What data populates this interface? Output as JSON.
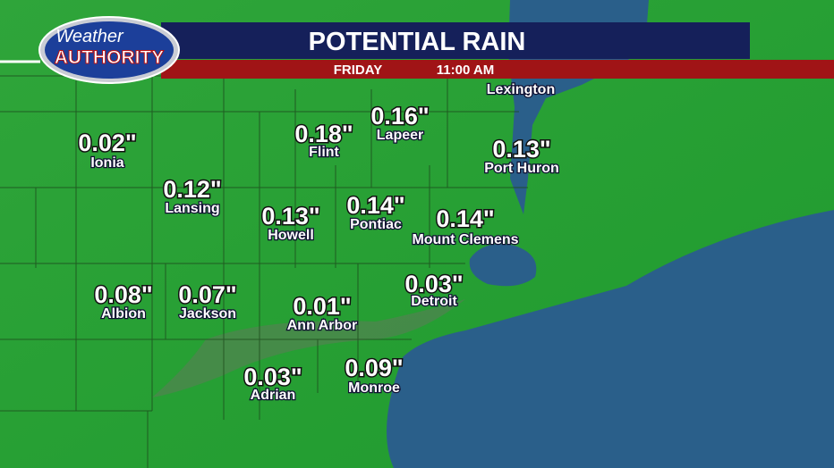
{
  "header": {
    "logo_top": "Weather",
    "logo_bottom": "AUTHORITY",
    "title": "POTENTIAL RAIN",
    "day": "FRIDAY",
    "time": "11:00 AM"
  },
  "locations": [
    {
      "name": "Ionia",
      "value": "0.02\""
    },
    {
      "name": "Lansing",
      "value": "0.12\""
    },
    {
      "name": "Howell",
      "value": "0.13\""
    },
    {
      "name": "Flint",
      "value": "0.18\""
    },
    {
      "name": "Lapeer",
      "value": "0.16\""
    },
    {
      "name": "Pontiac",
      "value": "0.14\""
    },
    {
      "name": "Mount Clemens",
      "value": "0.14\""
    },
    {
      "name": "Port Huron",
      "value": "0.13\""
    },
    {
      "name": "Lexington"
    },
    {
      "name": "Albion",
      "value": "0.08\""
    },
    {
      "name": "Jackson",
      "value": "0.07\""
    },
    {
      "name": "Ann Arbor",
      "value": "0.01\""
    },
    {
      "name": "Detroit",
      "value": "0.03\""
    },
    {
      "name": "Adrian",
      "value": "0.03\""
    },
    {
      "name": "Monroe",
      "value": "0.09\""
    }
  ]
}
